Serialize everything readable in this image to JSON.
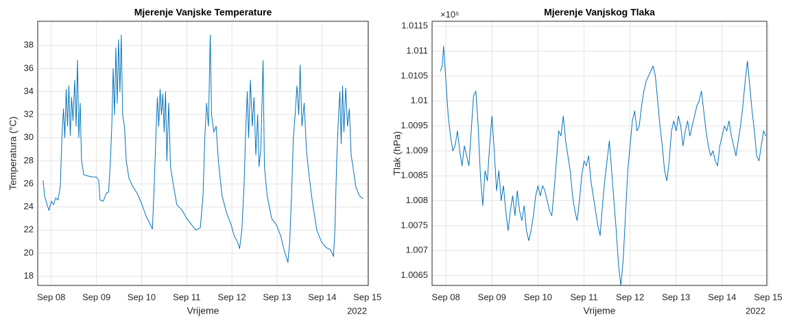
{
  "chart_data": [
    {
      "type": "line",
      "title": "Mjerenje Vanjske Temperature",
      "xlabel": "Vrijeme",
      "ylabel": "Temperatura (°C)",
      "x_year_label": "2022",
      "color": "#0072bd",
      "grid": true,
      "xlim": [
        7.7,
        15.02
      ],
      "xticks": [
        {
          "value": 8,
          "label": "Sep 08"
        },
        {
          "value": 9,
          "label": "Sep 09"
        },
        {
          "value": 10,
          "label": "Sep 10"
        },
        {
          "value": 11,
          "label": "Sep 11"
        },
        {
          "value": 12,
          "label": "Sep 12"
        },
        {
          "value": 13,
          "label": "Sep 13"
        },
        {
          "value": 14,
          "label": "Sep 14"
        },
        {
          "value": 15,
          "label": "Sep 15"
        }
      ],
      "ylim": [
        17.2,
        40.1
      ],
      "yticks": [
        18,
        20,
        22,
        24,
        26,
        28,
        30,
        32,
        34,
        36,
        38
      ],
      "x": [
        7.82,
        7.85,
        7.9,
        7.95,
        8.0,
        8.05,
        8.1,
        8.15,
        8.2,
        8.24,
        8.27,
        8.3,
        8.33,
        8.36,
        8.39,
        8.42,
        8.45,
        8.48,
        8.52,
        8.55,
        8.58,
        8.61,
        8.64,
        8.67,
        8.72,
        8.8,
        8.9,
        9.0,
        9.05,
        9.08,
        9.15,
        9.22,
        9.27,
        9.31,
        9.34,
        9.37,
        9.4,
        9.43,
        9.46,
        9.49,
        9.52,
        9.55,
        9.58,
        9.62,
        9.66,
        9.72,
        9.8,
        9.9,
        10.0,
        10.1,
        10.18,
        10.24,
        10.28,
        10.32,
        10.35,
        10.38,
        10.41,
        10.44,
        10.47,
        10.5,
        10.53,
        10.56,
        10.6,
        10.64,
        10.7,
        10.78,
        10.9,
        11.0,
        11.1,
        11.2,
        11.3,
        11.36,
        11.4,
        11.44,
        11.48,
        11.52,
        11.55,
        11.6,
        11.65,
        11.7,
        11.78,
        11.88,
        11.98,
        12.05,
        12.12,
        12.17,
        12.22,
        12.27,
        12.3,
        12.34,
        12.37,
        12.41,
        12.45,
        12.49,
        12.53,
        12.57,
        12.6,
        12.64,
        12.69,
        12.72,
        12.78,
        12.88,
        12.98,
        13.08,
        13.16,
        13.24,
        13.28,
        13.32,
        13.36,
        13.4,
        13.44,
        13.48,
        13.51,
        13.55,
        13.6,
        13.65,
        13.7,
        13.78,
        13.88,
        13.98,
        14.08,
        14.18,
        14.25,
        14.28,
        14.32,
        14.35,
        14.39,
        14.42,
        14.45,
        14.48,
        14.52,
        14.56,
        14.6,
        14.64,
        14.68,
        14.74,
        14.82,
        14.9
      ],
      "values": [
        26.3,
        25,
        24.3,
        23.7,
        24.5,
        24.2,
        24.8,
        24.6,
        25.8,
        30.5,
        32.5,
        30,
        34.2,
        31,
        34.5,
        30.2,
        33.5,
        31.5,
        35,
        31,
        36.7,
        30,
        33,
        28,
        26.8,
        26.7,
        26.6,
        26.6,
        26.3,
        24.6,
        24.5,
        25.2,
        25.3,
        28,
        31,
        36,
        32,
        37.8,
        33,
        38.5,
        34,
        38.9,
        32,
        31,
        28,
        26.5,
        25.8,
        25.2,
        24.3,
        23.2,
        22.6,
        22.1,
        26,
        30.5,
        33.5,
        31,
        34.2,
        32,
        33.8,
        30.5,
        34,
        28,
        33,
        27.5,
        26,
        24.2,
        23.7,
        23,
        22.5,
        22,
        22.2,
        25,
        30,
        33,
        31,
        38.9,
        32,
        30.5,
        31,
        28,
        25,
        23.5,
        22.5,
        21.5,
        21,
        20.4,
        22,
        26,
        30,
        34,
        30,
        35,
        31,
        33.5,
        28.5,
        32,
        27.5,
        29,
        36.7,
        27.5,
        25,
        23,
        22.5,
        21.5,
        20.2,
        19.2,
        21,
        25,
        30,
        32,
        34.5,
        32,
        36.3,
        31,
        33,
        29,
        27,
        24.5,
        22,
        21,
        20.5,
        20.3,
        19.7,
        22,
        28,
        31,
        34,
        29.5,
        34.5,
        30.5,
        34.3,
        31,
        32.5,
        28.5,
        27.5,
        25.8,
        25,
        24.7
      ]
    },
    {
      "type": "line",
      "title": "Mjerenje Vanjskog Tlaka",
      "xlabel": "Vrijeme",
      "ylabel": "Tlak (hPa)",
      "x_year_label": "2022",
      "y_exponent_label": "×10⁵",
      "color": "#0072bd",
      "grid": true,
      "xlim": [
        7.7,
        14.97
      ],
      "xticks": [
        {
          "value": 8,
          "label": "Sep 08"
        },
        {
          "value": 9,
          "label": "Sep 09"
        },
        {
          "value": 10,
          "label": "Sep 10"
        },
        {
          "value": 11,
          "label": "Sep 11"
        },
        {
          "value": 12,
          "label": "Sep 12"
        },
        {
          "value": 13,
          "label": "Sep 13"
        },
        {
          "value": 14,
          "label": "Sep 14"
        },
        {
          "value": 15,
          "label": "Sep 15"
        }
      ],
      "ylim": [
        1.0063,
        1.0116
      ],
      "yticks": [
        1.0065,
        1.007,
        1.0075,
        1.008,
        1.0085,
        1.009,
        1.0095,
        1.01,
        1.0105,
        1.011,
        1.0115
      ],
      "x": [
        7.88,
        7.92,
        7.95,
        8.0,
        8.05,
        8.1,
        8.15,
        8.2,
        8.25,
        8.3,
        8.35,
        8.4,
        8.45,
        8.5,
        8.55,
        8.6,
        8.65,
        8.7,
        8.75,
        8.8,
        8.85,
        8.9,
        8.95,
        9.0,
        9.05,
        9.1,
        9.15,
        9.2,
        9.25,
        9.3,
        9.35,
        9.4,
        9.45,
        9.5,
        9.55,
        9.6,
        9.65,
        9.7,
        9.75,
        9.8,
        9.85,
        9.9,
        9.95,
        10.0,
        10.05,
        10.1,
        10.15,
        10.2,
        10.25,
        10.3,
        10.35,
        10.4,
        10.45,
        10.5,
        10.55,
        10.6,
        10.65,
        10.7,
        10.75,
        10.8,
        10.85,
        10.9,
        10.95,
        11.0,
        11.05,
        11.1,
        11.15,
        11.2,
        11.25,
        11.3,
        11.35,
        11.4,
        11.45,
        11.5,
        11.55,
        11.6,
        11.65,
        11.7,
        11.75,
        11.8,
        11.85,
        11.9,
        11.95,
        12.0,
        12.05,
        12.1,
        12.15,
        12.2,
        12.25,
        12.3,
        12.35,
        12.4,
        12.45,
        12.5,
        12.55,
        12.6,
        12.65,
        12.7,
        12.75,
        12.8,
        12.85,
        12.9,
        12.95,
        13.0,
        13.05,
        13.1,
        13.15,
        13.2,
        13.25,
        13.3,
        13.35,
        13.4,
        13.45,
        13.5,
        13.55,
        13.6,
        13.65,
        13.7,
        13.75,
        13.8,
        13.85,
        13.9,
        13.95,
        14.0,
        14.05,
        14.1,
        14.15,
        14.2,
        14.25,
        14.3,
        14.35,
        14.4,
        14.45,
        14.5,
        14.55,
        14.6,
        14.65,
        14.7,
        14.75,
        14.8,
        14.85,
        14.9,
        14.95
      ],
      "values": [
        1.0106,
        1.0107,
        1.0111,
        1.0104,
        1.0097,
        1.0093,
        1.009,
        1.0091,
        1.0094,
        1.009,
        1.0087,
        1.0091,
        1.0089,
        1.0087,
        1.0094,
        1.0101,
        1.0102,
        1.0095,
        1.0085,
        1.0079,
        1.0086,
        1.0084,
        1.0091,
        1.0097,
        1.009,
        1.0082,
        1.0086,
        1.008,
        1.0083,
        1.0078,
        1.0074,
        1.0078,
        1.0081,
        1.0077,
        1.0082,
        1.0078,
        1.0076,
        1.0079,
        1.0074,
        1.0072,
        1.0074,
        1.0077,
        1.0081,
        1.0083,
        1.0081,
        1.0083,
        1.0082,
        1.008,
        1.0078,
        1.0077,
        1.0082,
        1.0088,
        1.0094,
        1.0093,
        1.0097,
        1.0092,
        1.0089,
        1.0086,
        1.0081,
        1.0078,
        1.0076,
        1.008,
        1.0085,
        1.0088,
        1.0087,
        1.0089,
        1.0084,
        1.0081,
        1.0078,
        1.0075,
        1.0073,
        1.0079,
        1.0084,
        1.0088,
        1.0092,
        1.0086,
        1.008,
        1.0074,
        1.0067,
        1.0063,
        1.0068,
        1.0077,
        1.0086,
        1.0091,
        1.0096,
        1.0098,
        1.0094,
        1.0095,
        1.0099,
        1.0102,
        1.0104,
        1.0105,
        1.0106,
        1.0107,
        1.0105,
        1.01,
        1.0095,
        1.0091,
        1.0086,
        1.0084,
        1.0088,
        1.0094,
        1.0096,
        1.0094,
        1.0097,
        1.0095,
        1.0091,
        1.0094,
        1.0096,
        1.0093,
        1.0095,
        1.0097,
        1.0099,
        1.01,
        1.0102,
        1.0098,
        1.0094,
        1.0091,
        1.0089,
        1.009,
        1.0088,
        1.0087,
        1.0091,
        1.0093,
        1.0095,
        1.0094,
        1.0096,
        1.0093,
        1.0091,
        1.0089,
        1.0092,
        1.0095,
        1.0099,
        1.0104,
        1.0108,
        1.0103,
        1.0098,
        1.0094,
        1.0089,
        1.0088,
        1.0091,
        1.0094,
        1.0093
      ]
    }
  ]
}
